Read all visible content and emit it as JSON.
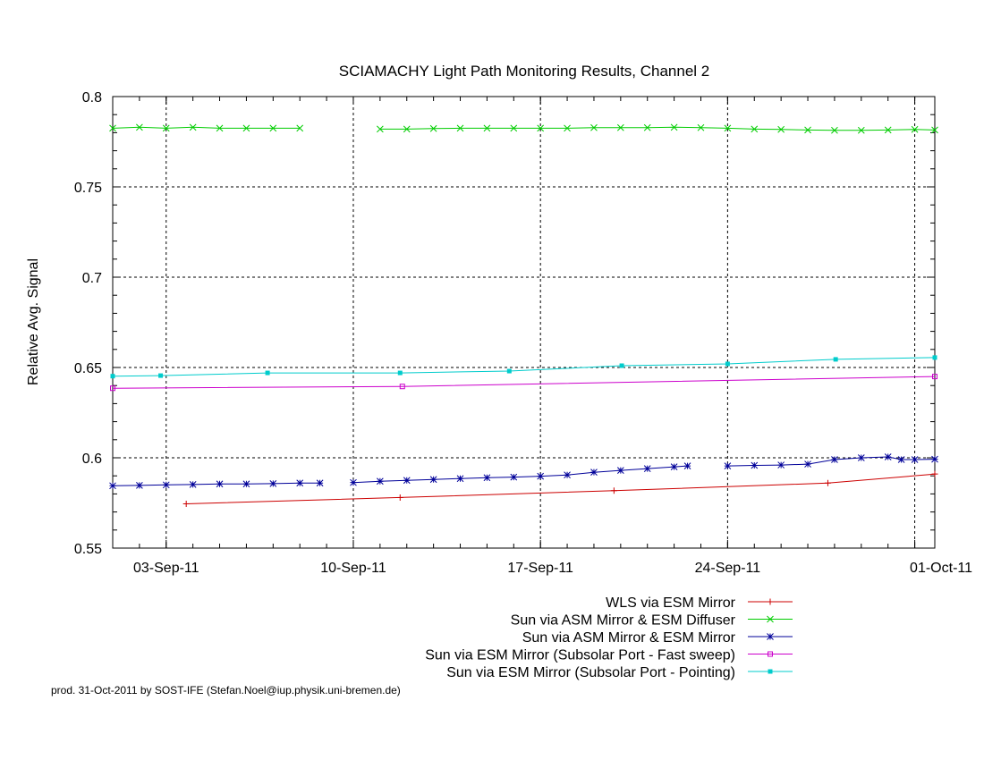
{
  "chart_data": {
    "type": "line",
    "title": "SCIAMACHY Light Path Monitoring Results, Channel 2",
    "xlabel": "",
    "ylabel": "Relative Avg. Signal",
    "ylim": [
      0.55,
      0.8
    ],
    "xlim": [
      "2011-09-01T00:00",
      "2011-10-01T18:00"
    ],
    "grid": true,
    "legend_position": "below plot, right-aligned",
    "x_ticks": [
      {
        "date": "2011-09-03",
        "label": "03-Sep-11"
      },
      {
        "date": "2011-09-10",
        "label": "10-Sep-11"
      },
      {
        "date": "2011-09-17",
        "label": "17-Sep-11"
      },
      {
        "date": "2011-09-24",
        "label": "24-Sep-11"
      },
      {
        "date": "2011-10-01",
        "label": "01-Oct-11"
      }
    ],
    "y_ticks": [
      {
        "value": 0.55,
        "label": "0.55"
      },
      {
        "value": 0.6,
        "label": "0.6"
      },
      {
        "value": 0.65,
        "label": "0.65"
      },
      {
        "value": 0.7,
        "label": "0.7"
      },
      {
        "value": 0.75,
        "label": "0.75"
      },
      {
        "value": 0.8,
        "label": "0.8"
      }
    ],
    "series": [
      {
        "name": "WLS via ESM Mirror",
        "color": "#cc0000",
        "marker": "plus",
        "segments": [
          [
            {
              "x": "2011-09-03T18:00",
              "y": 0.5745
            },
            {
              "x": "2011-09-11T18:00",
              "y": 0.578
            },
            {
              "x": "2011-09-19T18:00",
              "y": 0.5818
            },
            {
              "x": "2011-09-27T18:00",
              "y": 0.586
            },
            {
              "x": "2011-10-01T18:00",
              "y": 0.591
            }
          ]
        ]
      },
      {
        "name": "Sun via ASM Mirror & ESM Diffuser",
        "color": "#00cc00",
        "marker": "cross",
        "segments": [
          [
            {
              "x": "2011-09-01T00:00",
              "y": 0.7825
            },
            {
              "x": "2011-09-02T00:00",
              "y": 0.783
            },
            {
              "x": "2011-09-03T00:00",
              "y": 0.7825
            },
            {
              "x": "2011-09-04T00:00",
              "y": 0.783
            },
            {
              "x": "2011-09-05T00:00",
              "y": 0.7825
            },
            {
              "x": "2011-09-06T00:00",
              "y": 0.7825
            },
            {
              "x": "2011-09-07T00:00",
              "y": 0.7825
            },
            {
              "x": "2011-09-08T00:00",
              "y": 0.7825
            }
          ],
          [
            {
              "x": "2011-09-11T00:00",
              "y": 0.782
            },
            {
              "x": "2011-09-12T00:00",
              "y": 0.782
            },
            {
              "x": "2011-09-13T00:00",
              "y": 0.7823
            },
            {
              "x": "2011-09-14T00:00",
              "y": 0.7825
            },
            {
              "x": "2011-09-15T00:00",
              "y": 0.7825
            },
            {
              "x": "2011-09-16T00:00",
              "y": 0.7825
            },
            {
              "x": "2011-09-17T00:00",
              "y": 0.7825
            },
            {
              "x": "2011-09-18T00:00",
              "y": 0.7825
            },
            {
              "x": "2011-09-19T00:00",
              "y": 0.7828
            },
            {
              "x": "2011-09-20T00:00",
              "y": 0.7828
            },
            {
              "x": "2011-09-21T00:00",
              "y": 0.7828
            },
            {
              "x": "2011-09-22T00:00",
              "y": 0.783
            },
            {
              "x": "2011-09-23T00:00",
              "y": 0.7828
            },
            {
              "x": "2011-09-24T00:00",
              "y": 0.7825
            },
            {
              "x": "2011-09-25T00:00",
              "y": 0.782
            },
            {
              "x": "2011-09-26T00:00",
              "y": 0.7818
            },
            {
              "x": "2011-09-27T00:00",
              "y": 0.7815
            },
            {
              "x": "2011-09-28T00:00",
              "y": 0.7813
            },
            {
              "x": "2011-09-29T00:00",
              "y": 0.7813
            },
            {
              "x": "2011-09-30T00:00",
              "y": 0.7815
            },
            {
              "x": "2011-10-01T00:00",
              "y": 0.7818
            },
            {
              "x": "2011-10-01T18:00",
              "y": 0.7815
            }
          ]
        ]
      },
      {
        "name": "Sun via ASM Mirror & ESM Mirror",
        "color": "#000099",
        "marker": "star",
        "segments": [
          [
            {
              "x": "2011-09-01T00:00",
              "y": 0.5845
            },
            {
              "x": "2011-09-02T00:00",
              "y": 0.5847
            },
            {
              "x": "2011-09-03T00:00",
              "y": 0.585
            },
            {
              "x": "2011-09-04T00:00",
              "y": 0.5852
            },
            {
              "x": "2011-09-05T00:00",
              "y": 0.5855
            },
            {
              "x": "2011-09-06T00:00",
              "y": 0.5855
            },
            {
              "x": "2011-09-07T00:00",
              "y": 0.5857
            },
            {
              "x": "2011-09-08T00:00",
              "y": 0.586
            },
            {
              "x": "2011-09-08T18:00",
              "y": 0.586
            }
          ],
          [
            {
              "x": "2011-09-10T00:00",
              "y": 0.5863
            },
            {
              "x": "2011-09-11T00:00",
              "y": 0.587
            },
            {
              "x": "2011-09-12T00:00",
              "y": 0.5875
            },
            {
              "x": "2011-09-13T00:00",
              "y": 0.588
            },
            {
              "x": "2011-09-14T00:00",
              "y": 0.5885
            },
            {
              "x": "2011-09-15T00:00",
              "y": 0.589
            },
            {
              "x": "2011-09-16T00:00",
              "y": 0.5893
            },
            {
              "x": "2011-09-17T00:00",
              "y": 0.5898
            },
            {
              "x": "2011-09-18T00:00",
              "y": 0.5905
            },
            {
              "x": "2011-09-19T00:00",
              "y": 0.592
            },
            {
              "x": "2011-09-20T00:00",
              "y": 0.593
            },
            {
              "x": "2011-09-21T00:00",
              "y": 0.594
            },
            {
              "x": "2011-09-22T00:00",
              "y": 0.595
            },
            {
              "x": "2011-09-22T12:00",
              "y": 0.5955
            }
          ],
          [
            {
              "x": "2011-09-24T00:00",
              "y": 0.5955
            },
            {
              "x": "2011-09-25T00:00",
              "y": 0.5958
            },
            {
              "x": "2011-09-26T00:00",
              "y": 0.596
            },
            {
              "x": "2011-09-27T00:00",
              "y": 0.5965
            },
            {
              "x": "2011-09-28T00:00",
              "y": 0.599
            },
            {
              "x": "2011-09-29T00:00",
              "y": 0.6
            },
            {
              "x": "2011-09-30T00:00",
              "y": 0.6005
            },
            {
              "x": "2011-09-30T12:00",
              "y": 0.599
            },
            {
              "x": "2011-10-01T00:00",
              "y": 0.599
            },
            {
              "x": "2011-10-01T18:00",
              "y": 0.5992
            }
          ]
        ]
      },
      {
        "name": "Sun via ESM Mirror (Subsolar Port - Fast sweep)",
        "color": "#cc00cc",
        "marker": "open-square",
        "segments": [
          [
            {
              "x": "2011-09-01T00:00",
              "y": 0.6385
            },
            {
              "x": "2011-09-11T20:00",
              "y": 0.6395
            },
            {
              "x": "2011-10-01T18:00",
              "y": 0.645
            }
          ]
        ]
      },
      {
        "name": "Sun via ESM Mirror (Subsolar Port - Pointing)",
        "color": "#00cccc",
        "marker": "filled-square",
        "segments": [
          [
            {
              "x": "2011-09-01T00:00",
              "y": 0.6452
            },
            {
              "x": "2011-09-02T19:00",
              "y": 0.6455
            },
            {
              "x": "2011-09-06T19:00",
              "y": 0.647
            },
            {
              "x": "2011-09-11T18:00",
              "y": 0.647
            },
            {
              "x": "2011-09-15T20:00",
              "y": 0.648
            },
            {
              "x": "2011-09-20T01:00",
              "y": 0.651
            },
            {
              "x": "2011-09-24T00:00",
              "y": 0.652
            },
            {
              "x": "2011-09-28T01:00",
              "y": 0.6545
            },
            {
              "x": "2011-10-01T18:00",
              "y": 0.6555
            }
          ]
        ]
      }
    ]
  },
  "footer": "prod. 31-Oct-2011 by SOST-IFE (Stefan.Noel@iup.physik.uni-bremen.de)"
}
